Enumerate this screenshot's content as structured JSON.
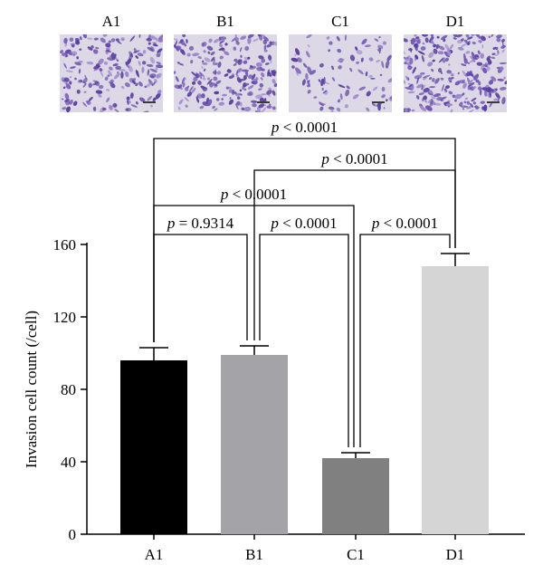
{
  "panels": [
    {
      "label": "A1",
      "density": 0.75
    },
    {
      "label": "B1",
      "density": 0.85
    },
    {
      "label": "C1",
      "density": 0.35
    },
    {
      "label": "D1",
      "density": 1.0
    }
  ],
  "chart_data": {
    "type": "bar",
    "categories": [
      "A1",
      "B1",
      "C1",
      "D1"
    ],
    "values": [
      96,
      99,
      42,
      148
    ],
    "errors": [
      7,
      5,
      3,
      7
    ],
    "colors": [
      "#000000",
      "#a3a3a8",
      "#808080",
      "#d5d5d5"
    ],
    "ylabel": "Invasion cell count (/cell)",
    "xlabel": "",
    "ylim": [
      0,
      160
    ],
    "yticks": [
      0,
      40,
      80,
      120,
      160
    ],
    "grid": false,
    "comparisons": [
      {
        "from": "A1",
        "to": "B1",
        "p_label": "p",
        "p_text": " = 0.9314"
      },
      {
        "from": "B1",
        "to": "C1",
        "p_label": "p",
        "p_text": " < 0.0001"
      },
      {
        "from": "C1",
        "to": "D1",
        "p_label": "p",
        "p_text": " < 0.0001"
      },
      {
        "from": "A1",
        "to": "C1",
        "p_label": "p",
        "p_text": " < 0.0001"
      },
      {
        "from": "B1",
        "to": "D1",
        "p_label": "p",
        "p_text": " < 0.0001"
      },
      {
        "from": "A1",
        "to": "D1",
        "p_label": "p",
        "p_text": " < 0.0001"
      }
    ]
  }
}
